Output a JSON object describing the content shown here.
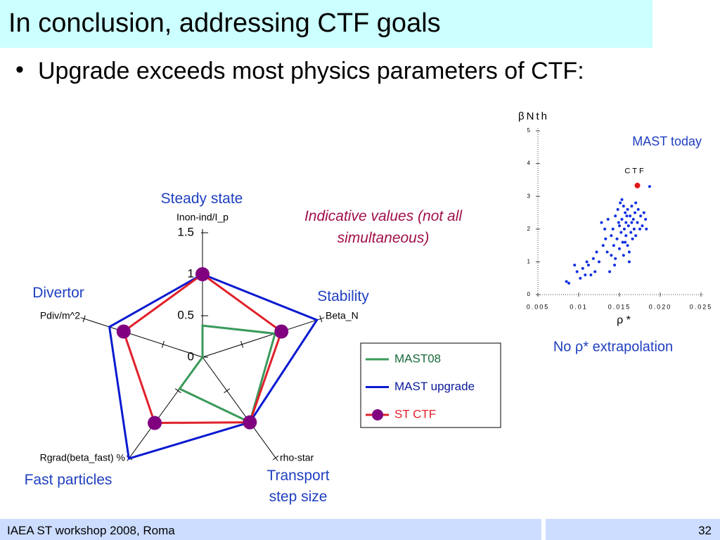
{
  "title": "In conclusion, addressing CTF goals",
  "bullet": "Upgrade exceeds most physics parameters of CTF:",
  "footer": {
    "left": "IAEA ST workshop 2008, Roma",
    "right": "32"
  },
  "chart_data": [
    {
      "type": "radar",
      "axes": [
        "Inon-ind/I_p",
        "Beta_N",
        "rho-star",
        "Rgrad(beta_fast) %",
        "Pdiv/m^2"
      ],
      "groups": [
        "Steady state",
        "Stability",
        "Transport step size",
        "Fast particles",
        "Divertor"
      ],
      "annotation": "Indicative values (not all simultaneous)",
      "rlim": [
        0,
        1.5
      ],
      "rticks": [
        0,
        0.5,
        1,
        1.5
      ],
      "series": [
        {
          "name": "MAST08",
          "color": "#3a9a5a",
          "values": [
            0.38,
            0.92,
            0.97,
            0.47,
            0
          ]
        },
        {
          "name": "MAST upgrade",
          "color": "#0a1ad0",
          "values": [
            1.0,
            1.45,
            0.97,
            1.51,
            1.18
          ]
        },
        {
          "name": "ST CTF",
          "color": "#e0202a",
          "marker_color": "#800080",
          "values": [
            1.0,
            1.0,
            0.97,
            0.98,
            1.0
          ]
        }
      ]
    },
    {
      "type": "scatter",
      "ylabel": "βNth",
      "xlabel": "ρ *",
      "annotation": "MAST today",
      "caption": "No ρ* extrapolation",
      "xlim": [
        0.005,
        0.025
      ],
      "xticks": [
        0.005,
        0.01,
        0.015,
        {
          "value": 0.02,
          "label": "0.020"
        },
        0.025
      ],
      "ylim": [
        0,
        5
      ],
      "yticks": [
        0,
        1,
        2,
        3,
        4,
        5
      ],
      "series": [
        {
          "name": "MAST today",
          "color": "#1030e0",
          "show_name": false,
          "x": [
            0.0085,
            0.0088,
            0.0095,
            0.0098,
            0.0102,
            0.0105,
            0.0108,
            0.011,
            0.0112,
            0.0115,
            0.0118,
            0.012,
            0.0122,
            0.0125,
            0.0128,
            0.013,
            0.0132,
            0.0133,
            0.0135,
            0.0136,
            0.0138,
            0.014,
            0.014,
            0.0142,
            0.0143,
            0.0145,
            0.0145,
            0.0147,
            0.0148,
            0.015,
            0.015,
            0.0151,
            0.0152,
            0.0153,
            0.0154,
            0.0155,
            0.0155,
            0.0156,
            0.0157,
            0.0158,
            0.0158,
            0.016,
            0.016,
            0.0161,
            0.0162,
            0.0163,
            0.0164,
            0.0165,
            0.0165,
            0.0166,
            0.0167,
            0.0168,
            0.0169,
            0.017,
            0.017,
            0.0172,
            0.0173,
            0.0175,
            0.0176,
            0.0178,
            0.018,
            0.0182,
            0.0183,
            0.0187,
            0.0153,
            0.0157,
            0.0162,
            0.0149,
            0.0144,
            0.0159
          ],
          "values": [
            0.4,
            0.35,
            0.9,
            0.7,
            0.5,
            0.8,
            0.6,
            1.0,
            0.9,
            0.6,
            1.1,
            0.7,
            1.3,
            1.0,
            2.2,
            1.5,
            2.0,
            1.7,
            1.3,
            2.3,
            0.7,
            1.2,
            1.8,
            2.0,
            1.5,
            2.4,
            1.1,
            1.7,
            2.6,
            2.1,
            1.4,
            2.8,
            1.9,
            2.3,
            1.6,
            2.7,
            1.2,
            2.0,
            2.5,
            1.8,
            2.2,
            2.6,
            1.5,
            2.1,
            1.0,
            2.4,
            1.9,
            2.7,
            2.2,
            1.7,
            2.3,
            2.0,
            2.5,
            2.8,
            1.8,
            2.2,
            2.6,
            2.0,
            2.4,
            2.1,
            2.5,
            2.3,
            2.0,
            3.3,
            2.9,
            1.6,
            1.3,
            2.2,
            0.9,
            2.4
          ]
        },
        {
          "name": "CTF",
          "color": "#e01818",
          "show_name": true,
          "x": [
            0.0172
          ],
          "values": [
            3.33
          ]
        }
      ]
    }
  ]
}
